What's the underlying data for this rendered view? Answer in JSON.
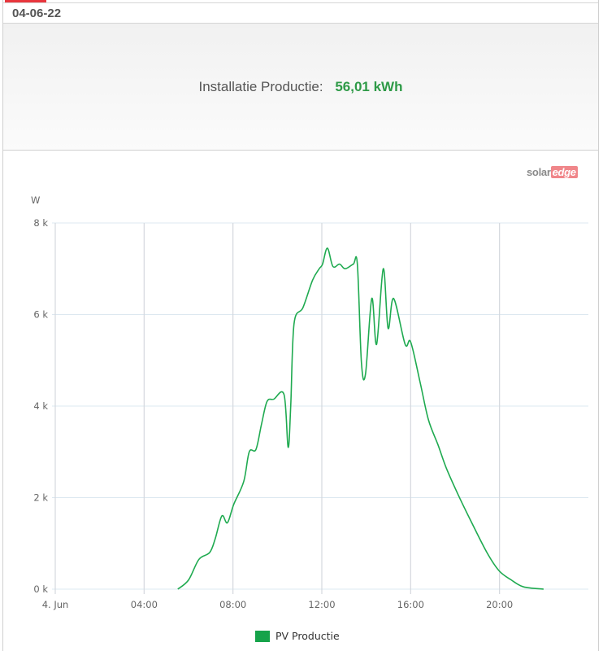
{
  "header": {
    "date": "04-06-22",
    "accent_color": "#e8363d"
  },
  "summary": {
    "label": "Installatie Productie:",
    "value": "56,01 kWh",
    "value_color": "#2e9a47"
  },
  "logo": {
    "part1": "solar",
    "part2": "edge"
  },
  "legend": {
    "items": [
      {
        "label": "PV Productie",
        "color": "#16a34a"
      }
    ]
  },
  "chart_data": {
    "type": "line",
    "title": "",
    "xlabel": "",
    "ylabel": "W",
    "ylim": [
      0,
      8000
    ],
    "xlim": [
      "00:00",
      "24:00"
    ],
    "grid": true,
    "legend_position": "bottom",
    "y_ticks": [
      "0 k",
      "2 k",
      "4 k",
      "6 k",
      "8 k"
    ],
    "x_ticks": [
      "4. Jun",
      "04:00",
      "08:00",
      "12:00",
      "16:00",
      "20:00"
    ],
    "series": [
      {
        "name": "PV Productie",
        "color": "#1faa50",
        "points": [
          [
            "05:31",
            0
          ],
          [
            "06:00",
            200
          ],
          [
            "06:28",
            650
          ],
          [
            "06:57",
            800
          ],
          [
            "07:12",
            1100
          ],
          [
            "07:30",
            1600
          ],
          [
            "07:45",
            1450
          ],
          [
            "08:02",
            1850
          ],
          [
            "08:29",
            2350
          ],
          [
            "08:44",
            3000
          ],
          [
            "09:02",
            3050
          ],
          [
            "09:17",
            3600
          ],
          [
            "09:32",
            4100
          ],
          [
            "09:50",
            4150
          ],
          [
            "10:18",
            4250
          ],
          [
            "10:29",
            3100
          ],
          [
            "10:36",
            4000
          ],
          [
            "10:45",
            5800
          ],
          [
            "11:09",
            6150
          ],
          [
            "11:35",
            6750
          ],
          [
            "11:53",
            7000
          ],
          [
            "12:02",
            7100
          ],
          [
            "12:15",
            7450
          ],
          [
            "12:30",
            7050
          ],
          [
            "12:48",
            7100
          ],
          [
            "13:03",
            7000
          ],
          [
            "13:25",
            7100
          ],
          [
            "13:36",
            7100
          ],
          [
            "13:47",
            4950
          ],
          [
            "13:58",
            4700
          ],
          [
            "14:15",
            6350
          ],
          [
            "14:28",
            5350
          ],
          [
            "14:46",
            7000
          ],
          [
            "14:59",
            5700
          ],
          [
            "15:14",
            6350
          ],
          [
            "15:45",
            5350
          ],
          [
            "16:00",
            5400
          ],
          [
            "16:26",
            4500
          ],
          [
            "16:48",
            3700
          ],
          [
            "17:14",
            3150
          ],
          [
            "17:36",
            2650
          ],
          [
            "18:09",
            2050
          ],
          [
            "18:42",
            1500
          ],
          [
            "19:26",
            800
          ],
          [
            "19:59",
            400
          ],
          [
            "20:32",
            200
          ],
          [
            "21:05",
            50
          ],
          [
            "21:59",
            0
          ]
        ]
      }
    ]
  }
}
